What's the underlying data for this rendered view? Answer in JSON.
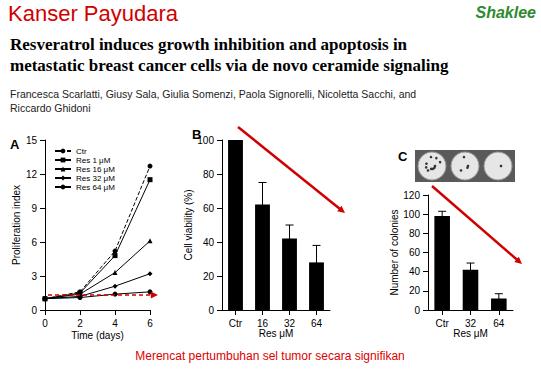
{
  "slide": {
    "title": "Kanser Payudara",
    "logo": "Shaklee",
    "paper_title": [
      "Resveratrol induces growth inhibition and apoptosis in",
      "metastatic breast cancer cells via de novo ceramide signaling"
    ],
    "authors": [
      "Francesca Scarlatti, Giusy Sala, Giulia Somenzi, Paola Signorelli, Nicoletta Sacchi, and",
      "Riccardo Ghidoni"
    ],
    "caption": "Merencat pertumbuhan sel tumor secara signifikan"
  },
  "chart_data": [
    {
      "type": "line",
      "title": "A",
      "x": [
        0,
        2,
        4,
        6
      ],
      "series": [
        {
          "name": "Ctr",
          "color": "#000000",
          "marker": "circle",
          "line_style": "dashed",
          "values": [
            1,
            1.6,
            5.2,
            12.7
          ]
        },
        {
          "name": "Res 1 μM",
          "color": "#000000",
          "marker": "square",
          "line_style": "solid",
          "values": [
            1,
            1.5,
            4.8,
            11.5
          ]
        },
        {
          "name": "Res 16 μM",
          "color": "#000000",
          "marker": "triangle",
          "line_style": "solid",
          "values": [
            1,
            1.4,
            3.3,
            6.1
          ]
        },
        {
          "name": "Res 32 μM",
          "color": "#000000",
          "marker": "diamond",
          "line_style": "solid",
          "values": [
            1,
            1.2,
            2.1,
            3.2
          ]
        },
        {
          "name": "Res 64 μM",
          "color": "#000000",
          "marker": "circle",
          "line_style": "solid",
          "values": [
            1,
            1.1,
            1.4,
            1.6
          ]
        }
      ],
      "xlabel": "Time (days)",
      "ylabel": "Proliferation index",
      "xlim": [
        0,
        6
      ],
      "xticks": [
        0,
        2,
        4,
        6
      ],
      "ylim": [
        0,
        15
      ],
      "yticks": [
        0,
        3,
        6,
        9,
        12,
        15
      ],
      "grid": false,
      "legend": "upper left"
    },
    {
      "type": "bar",
      "title": "B",
      "categories": [
        "Ctr",
        "16",
        "32",
        "64"
      ],
      "values": [
        100,
        62,
        42,
        28
      ],
      "errors": [
        0,
        13,
        8,
        10
      ],
      "color": "#000000",
      "xlabel": "Res μM",
      "ylabel": "Cell viability (%)",
      "ylim": [
        0,
        100
      ],
      "yticks": [
        0,
        20,
        40,
        60,
        80,
        100
      ],
      "grid": false
    },
    {
      "type": "bar",
      "title": "C",
      "categories": [
        "Ctr",
        "32",
        "64"
      ],
      "values": [
        98,
        42,
        12
      ],
      "errors": [
        5,
        7,
        5
      ],
      "color": "#000000",
      "xlabel": "Res μM",
      "ylabel": "Number of colonies",
      "ylim": [
        0,
        120
      ],
      "yticks": [
        0,
        20,
        40,
        60,
        80,
        100,
        120
      ],
      "grid": false
    }
  ]
}
